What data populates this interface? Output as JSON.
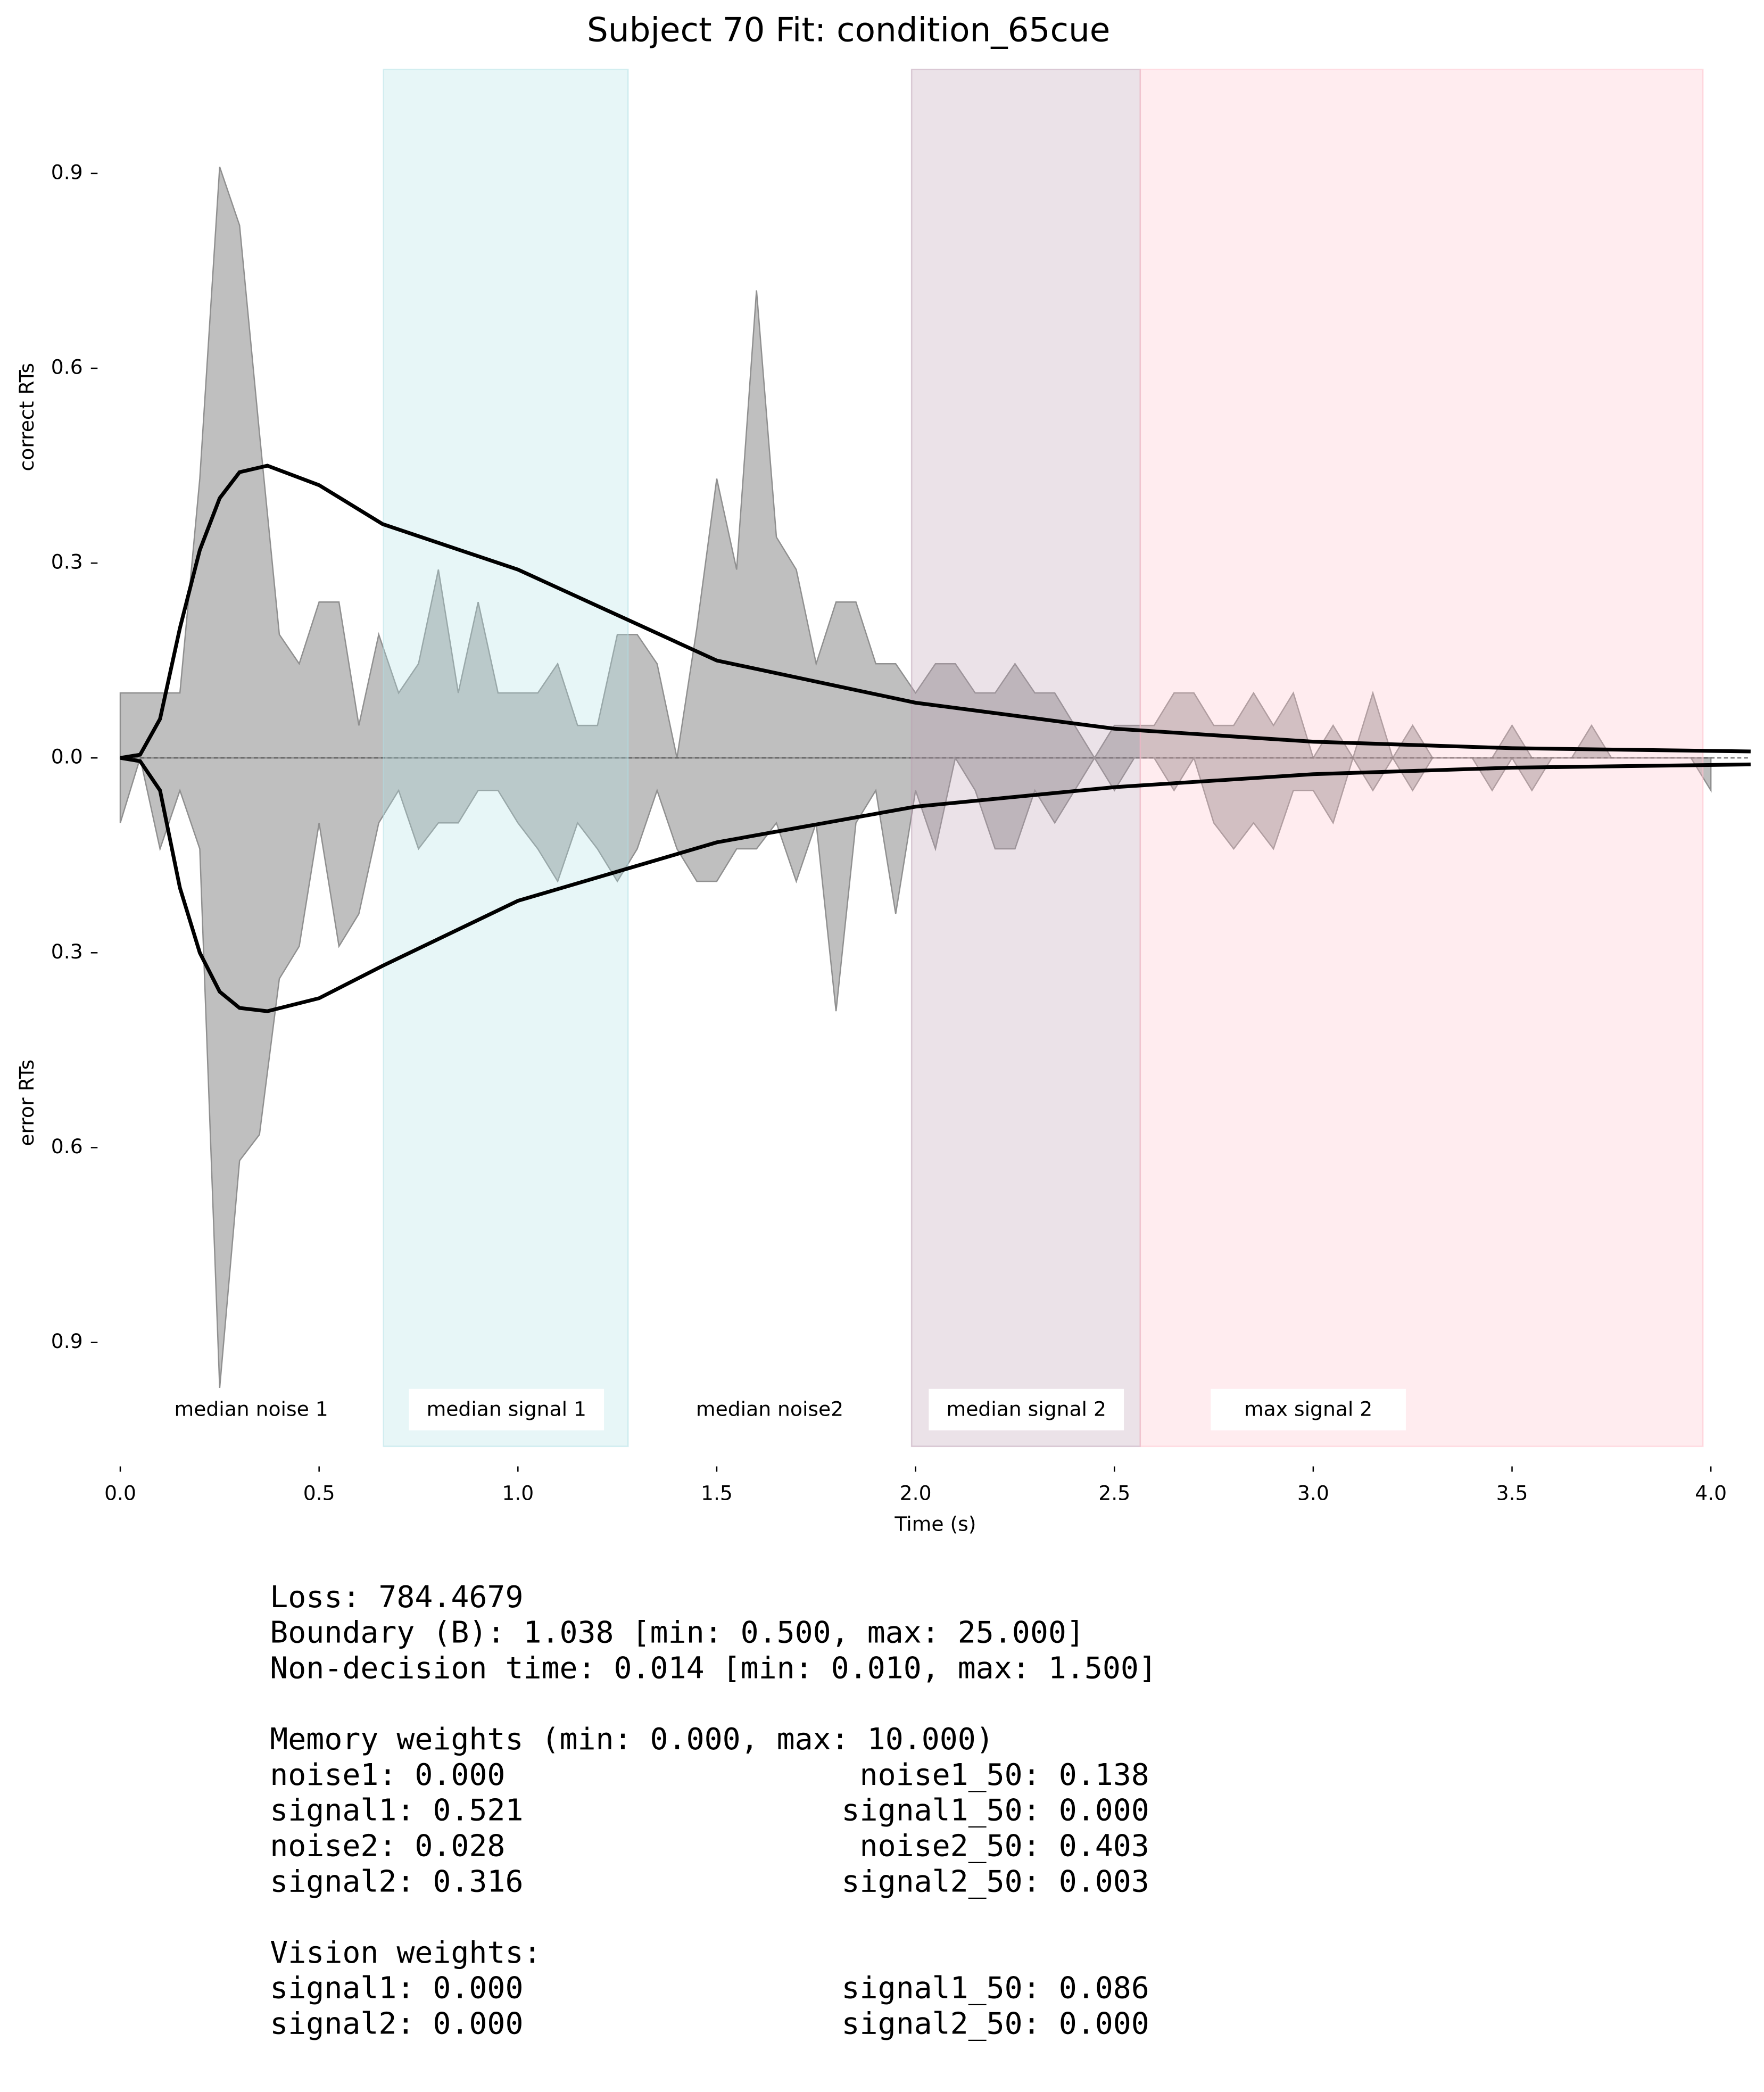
{
  "chart_data": {
    "type": "mirrored-area",
    "title": "Subject 70 Fit: condition_65cue",
    "xlabel": "Time (s)",
    "ylabel_top": "correct RTs",
    "ylabel_bottom": "error RTs",
    "xlim": [
      0,
      4.1
    ],
    "ylim": [
      -1.06,
      1.06
    ],
    "xticks": [
      {
        "value": 0,
        "label": "0.0"
      },
      0.5,
      {
        "value": 1,
        "label": "1.0"
      },
      1.5,
      {
        "value": 2,
        "label": "2.0"
      },
      2.5,
      {
        "value": 3,
        "label": "3.0"
      },
      3.5,
      {
        "value": 4,
        "label": "4.0"
      }
    ],
    "yticks": [
      {
        "value": -0.9,
        "label": "0.9"
      },
      {
        "value": -0.6,
        "label": "0.6"
      },
      {
        "value": -0.3,
        "label": "0.3"
      },
      {
        "value": 0,
        "label": "0.0"
      },
      0.3,
      0.6,
      0.9
    ],
    "x": [
      0,
      0.05,
      0.1,
      0.15,
      0.2,
      0.25,
      0.3,
      0.35,
      0.4,
      0.45,
      0.5,
      0.55,
      0.6,
      0.65,
      0.7,
      0.75,
      0.8,
      0.85,
      0.9,
      0.95,
      1.0,
      1.05,
      1.1,
      1.15,
      1.2,
      1.25,
      1.3,
      1.35,
      1.4,
      1.45,
      1.5,
      1.55,
      1.6,
      1.65,
      1.7,
      1.75,
      1.8,
      1.85,
      1.9,
      1.95,
      2.0,
      2.05,
      2.1,
      2.15,
      2.2,
      2.25,
      2.3,
      2.35,
      2.4,
      2.45,
      2.5,
      2.55,
      2.6,
      2.65,
      2.7,
      2.75,
      2.8,
      2.85,
      2.9,
      2.95,
      3.0,
      3.05,
      3.1,
      3.15,
      3.2,
      3.25,
      3.3,
      3.35,
      3.4,
      3.45,
      3.5,
      3.55,
      3.6,
      3.65,
      3.7,
      3.75,
      3.8,
      3.85,
      3.9,
      3.95,
      4.0
    ],
    "series": [
      {
        "color": "#808080",
        "values": [
          0.1,
          0.1,
          0.1,
          0.1,
          0.43,
          0.91,
          0.82,
          0.5,
          0.19,
          0.145,
          0.24,
          0.24,
          0.05,
          0.19,
          0.1,
          0.145,
          0.29,
          0.1,
          0.24,
          0.1,
          0.1,
          0.1,
          0.145,
          0.05,
          0.05,
          0.19,
          0.19,
          0.145,
          0,
          0.2,
          0.43,
          0.29,
          0.72,
          0.34,
          0.29,
          0.145,
          0.24,
          0.24,
          0.145,
          0.145,
          0.1,
          0.145,
          0.145,
          0.1,
          0.1,
          0.145,
          0.1,
          0.1,
          0.05,
          0,
          0.05,
          0.05,
          0.05,
          0.1,
          0.1,
          0.05,
          0.05,
          0.1,
          0.05,
          0.1,
          0,
          0.05,
          0,
          0.1,
          0,
          0.05,
          0,
          0,
          0,
          0,
          0.05,
          0,
          0,
          0,
          0.05,
          0,
          0,
          0,
          0,
          0,
          0
        ]
      },
      {
        "color": "#808080",
        "values": [
          -0.1,
          0,
          -0.14,
          -0.05,
          -0.14,
          -0.97,
          -0.62,
          -0.58,
          -0.34,
          -0.29,
          -0.1,
          -0.29,
          -0.24,
          -0.1,
          -0.05,
          -0.14,
          -0.1,
          -0.1,
          -0.05,
          -0.05,
          -0.1,
          -0.14,
          -0.19,
          -0.1,
          -0.14,
          -0.19,
          -0.14,
          -0.05,
          -0.14,
          -0.19,
          -0.19,
          -0.14,
          -0.14,
          -0.1,
          -0.19,
          -0.1,
          -0.39,
          -0.1,
          -0.05,
          -0.24,
          -0.05,
          -0.14,
          0,
          -0.05,
          -0.14,
          -0.14,
          -0.05,
          -0.1,
          -0.05,
          0,
          -0.05,
          0,
          0,
          -0.05,
          0,
          -0.1,
          -0.14,
          -0.1,
          -0.14,
          -0.05,
          -0.05,
          -0.1,
          0,
          -0.05,
          0,
          -0.05,
          0,
          0,
          0,
          -0.05,
          0,
          -0.05,
          0,
          0,
          0,
          0,
          0,
          0,
          0,
          0,
          -0.05
        ]
      }
    ],
    "model_curves": [
      {
        "color": "#000000",
        "x": [
          0,
          0.05,
          0.1,
          0.15,
          0.2,
          0.25,
          0.3,
          0.37,
          0.5,
          0.66,
          1.0,
          1.5,
          2.0,
          2.5,
          3.0,
          3.5,
          4.1
        ],
        "values": [
          0,
          0.005,
          0.06,
          0.2,
          0.32,
          0.4,
          0.44,
          0.45,
          0.42,
          0.36,
          0.29,
          0.15,
          0.085,
          0.045,
          0.025,
          0.015,
          0.01
        ]
      },
      {
        "color": "#000000",
        "x": [
          0,
          0.05,
          0.1,
          0.15,
          0.2,
          0.25,
          0.3,
          0.37,
          0.5,
          0.66,
          1.0,
          1.5,
          2.0,
          2.5,
          3.0,
          3.5,
          4.1
        ],
        "values": [
          0,
          -0.005,
          -0.05,
          -0.2,
          -0.3,
          -0.36,
          -0.385,
          -0.39,
          -0.37,
          -0.32,
          -0.22,
          -0.13,
          -0.075,
          -0.045,
          -0.025,
          -0.015,
          -0.01
        ]
      }
    ],
    "regions": [
      {
        "label": "median noise 1"
      },
      {
        "label": "median signal 1",
        "start": 0.662,
        "end": 1.277,
        "color": "#b0e0e6"
      },
      {
        "label": "median noise2"
      },
      {
        "label": "median signal 2",
        "start": 1.99,
        "end": 2.565,
        "color": "#bc9eb2"
      },
      {
        "label": "max signal 2",
        "start": 2.565,
        "end": 3.98,
        "color": "#ffc0cb"
      }
    ]
  },
  "stats": {
    "header": [
      "Loss: 784.4679",
      "Boundary (B): 1.038 [min: 0.500, max: 25.000]",
      "Non-decision time: 0.014 [min: 0.010, max: 1.500]"
    ],
    "memory": {
      "title": "Memory weights (min: 0.000, max: 10.000)",
      "rows": [
        [
          "noise1: 0.000",
          "noise1_50: 0.138"
        ],
        [
          "signal1: 0.521",
          "signal1_50: 0.000"
        ],
        [
          "noise2: 0.028",
          "noise2_50: 0.403"
        ],
        [
          "signal2: 0.316",
          "signal2_50: 0.003"
        ]
      ]
    },
    "vision": {
      "title": "Vision weights:",
      "rows": [
        [
          "signal1: 0.000",
          "signal1_50: 0.086"
        ],
        [
          "signal2: 0.000",
          "signal2_50: 0.000"
        ]
      ]
    }
  }
}
